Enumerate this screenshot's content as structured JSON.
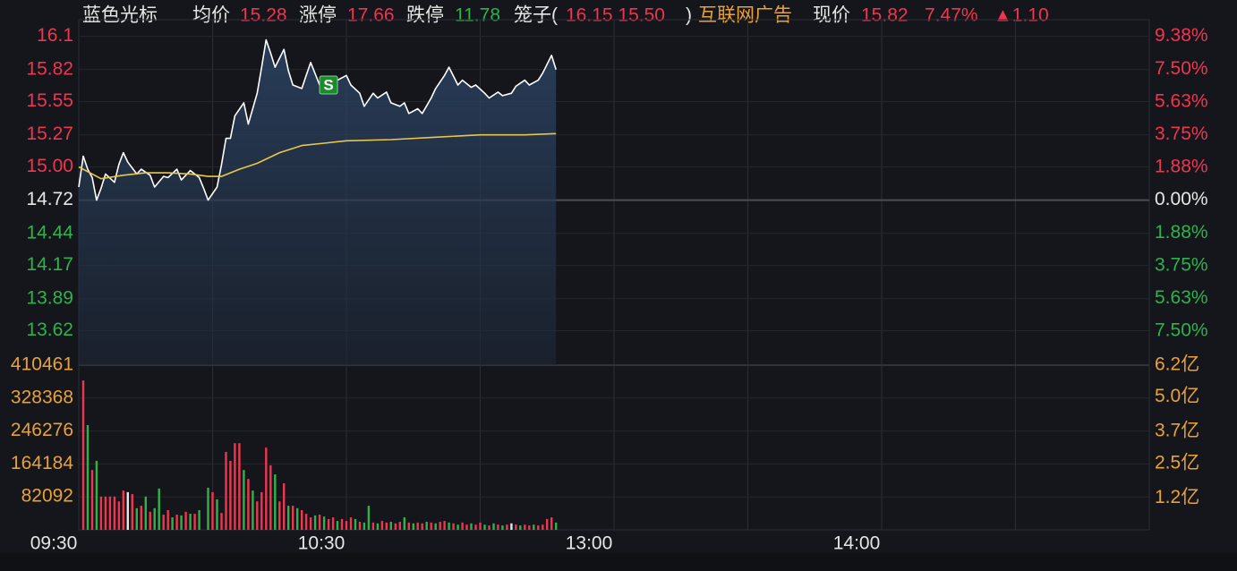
{
  "header": {
    "name": "蓝色光标",
    "avg_label": "均价",
    "avg": "15.28",
    "limit_up_label": "涨停",
    "limit_up": "17.66",
    "limit_down_label": "跌停",
    "limit_down": "11.78",
    "cage_open": "笼子(",
    "cage": "16.15 15.50",
    "cage_close": ")",
    "sector": "互联网广告",
    "price_label": "现价",
    "price": "15.82",
    "change_pct": "7.47%",
    "change": "▲1.10"
  },
  "chart_data": [
    {
      "type": "line",
      "x": [
        0,
        1,
        2,
        3,
        4,
        5,
        6,
        8,
        9,
        10,
        11,
        13,
        14,
        16,
        17,
        19,
        20,
        22,
        23,
        25,
        27,
        28,
        29,
        31,
        32,
        33,
        34,
        35,
        37,
        38,
        40,
        41,
        42,
        43,
        44,
        46,
        47,
        48,
        50,
        51,
        52,
        54,
        55,
        57,
        58,
        60,
        61,
        63,
        64,
        66,
        67,
        69,
        70,
        72,
        73,
        74,
        76,
        77,
        79,
        80,
        82,
        83,
        85,
        86,
        88,
        89,
        91,
        92,
        94,
        95,
        97,
        98,
        100,
        101,
        103,
        104,
        106,
        107
      ],
      "xlim": [
        0,
        240
      ],
      "xticks": [
        {
          "value": 0,
          "label": "09:30"
        },
        {
          "value": 60,
          "label": "10:30"
        },
        {
          "value": 120,
          "label": "13:00"
        },
        {
          "value": 180,
          "label": "14:00"
        }
      ],
      "x_minor_ticks": [
        30,
        90,
        150,
        210,
        240
      ],
      "series": [
        {
          "color": "#ffffff",
          "values": [
            14.83,
            15.09,
            14.98,
            14.91,
            14.72,
            14.82,
            14.94,
            14.87,
            15.02,
            15.12,
            15.04,
            14.94,
            14.98,
            14.93,
            14.83,
            14.92,
            14.91,
            14.98,
            14.89,
            14.97,
            14.91,
            14.82,
            14.72,
            14.83,
            15.02,
            15.24,
            15.24,
            15.43,
            15.54,
            15.36,
            15.62,
            15.84,
            16.07,
            15.96,
            15.84,
            15.99,
            15.81,
            15.69,
            15.66,
            15.77,
            15.88,
            15.69,
            15.73,
            15.66,
            15.73,
            15.77,
            15.69,
            15.62,
            15.51,
            15.62,
            15.58,
            15.63,
            15.54,
            15.51,
            15.54,
            15.45,
            15.49,
            15.45,
            15.58,
            15.66,
            15.77,
            15.84,
            15.69,
            15.73,
            15.67,
            15.69,
            15.62,
            15.58,
            15.63,
            15.6,
            15.62,
            15.68,
            15.73,
            15.69,
            15.73,
            15.79,
            15.94,
            15.82
          ]
        },
        {
          "color": "#e8c84a",
          "x": [
            0,
            5,
            10,
            15,
            20,
            25,
            29,
            32,
            36,
            40,
            45,
            50,
            55,
            60,
            70,
            80,
            90,
            100,
            107
          ],
          "values": [
            15.0,
            14.9,
            14.93,
            14.95,
            14.95,
            14.94,
            14.92,
            14.92,
            14.98,
            15.03,
            15.12,
            15.18,
            15.2,
            15.22,
            15.23,
            15.25,
            15.27,
            15.27,
            15.28
          ]
        }
      ],
      "ylim": [
        13.33,
        16.24
      ],
      "yticks": [
        16.1,
        15.82,
        15.55,
        15.27,
        {
          "value": 15.0,
          "label": "15.00"
        },
        14.72,
        14.44,
        14.17,
        13.89,
        13.62
      ],
      "y2lim": [
        10.33,
        -9.44
      ],
      "y2ticks": [
        {
          "value": 9.38,
          "label": "9.38%"
        },
        {
          "value": 7.5,
          "label": "7.50%"
        },
        {
          "value": 5.63,
          "label": "5.63%"
        },
        {
          "value": 3.75,
          "label": "3.75%"
        },
        {
          "value": 1.88,
          "label": "1.88%"
        },
        {
          "value": 0,
          "label": "0.00%"
        },
        {
          "value": -1.88,
          "label": "1.88%"
        },
        {
          "value": -3.75,
          "label": "3.75%"
        },
        {
          "value": -5.63,
          "label": "5.63%"
        },
        {
          "value": -7.5,
          "label": "7.50%"
        }
      ],
      "prev_close": 14.72,
      "up_color": "#f0364f",
      "down_color": "#2eb34b",
      "flat_color": "#e6e6e6",
      "annotations": [
        {
          "x": 56,
          "y": 15.69,
          "label": "S",
          "color": "#1d8a2e"
        }
      ]
    },
    {
      "type": "bar",
      "xlim": [
        0,
        240
      ],
      "series": [
        {
          "color": "#f0364f",
          "x": [
            1,
            3,
            5,
            6,
            7,
            8,
            9,
            10,
            12,
            14,
            16,
            19,
            20,
            22,
            24,
            26,
            30,
            32,
            33,
            34,
            35,
            36,
            38,
            40,
            41,
            42,
            43,
            45,
            46,
            48,
            50,
            51,
            52,
            54,
            56,
            57,
            59,
            60,
            61,
            63,
            66,
            68,
            69,
            71,
            72,
            74,
            76,
            77,
            79,
            81,
            82,
            84,
            86,
            87,
            89,
            90,
            92,
            94,
            96,
            98,
            100,
            101,
            103,
            104,
            105,
            106
          ],
          "values": [
            372000,
            149000,
            83000,
            83000,
            83000,
            83000,
            71000,
            98000,
            89000,
            60000,
            45000,
            38000,
            49000,
            38000,
            45000,
            40000,
            94000,
            42000,
            194000,
            172000,
            216000,
            216000,
            127000,
            71000,
            94000,
            205000,
            161000,
            71000,
            116000,
            60000,
            49000,
            40000,
            31000,
            38000,
            27000,
            31000,
            27000,
            22000,
            31000,
            20000,
            18000,
            22000,
            18000,
            16000,
            20000,
            18000,
            18000,
            16000,
            18000,
            20000,
            22000,
            16000,
            18000,
            13000,
            13000,
            18000,
            11000,
            13000,
            13000,
            13000,
            13000,
            11000,
            11000,
            13000,
            27000,
            31000
          ]
        },
        {
          "color": "#2eb34b",
          "x": [
            2,
            4,
            13,
            15,
            17,
            18,
            21,
            23,
            25,
            27,
            29,
            31,
            37,
            39,
            44,
            47,
            49,
            53,
            55,
            58,
            62,
            64,
            65,
            67,
            70,
            73,
            75,
            78,
            80,
            83,
            85,
            88,
            91,
            93,
            95,
            99,
            102,
            107
          ],
          "values": [
            261000,
            172000,
            54000,
            83000,
            54000,
            103000,
            31000,
            36000,
            40000,
            49000,
            105000,
            76000,
            149000,
            98000,
            138000,
            60000,
            54000,
            36000,
            33000,
            22000,
            27000,
            18000,
            60000,
            16000,
            20000,
            31000,
            16000,
            20000,
            16000,
            18000,
            13000,
            16000,
            13000,
            16000,
            11000,
            11000,
            13000,
            18000
          ]
        },
        {
          "color": "#e6e6e6",
          "x": [
            11,
            97
          ],
          "values": [
            94000,
            16000
          ]
        }
      ],
      "ylim": [
        0,
        410461
      ],
      "yticks": [
        410461,
        328368,
        246276,
        164184,
        82092
      ],
      "y2lim": [
        0,
        6.2
      ],
      "y2ticks": [
        {
          "value": 6.2,
          "label": "6.2亿"
        },
        {
          "value": 5.0,
          "label": "5.0亿"
        },
        {
          "value": 3.7,
          "label": "3.7亿"
        },
        {
          "value": 2.5,
          "label": "2.5亿"
        },
        {
          "value": 1.2,
          "label": "1.2亿"
        }
      ],
      "label_color": "#e8a23b"
    }
  ]
}
